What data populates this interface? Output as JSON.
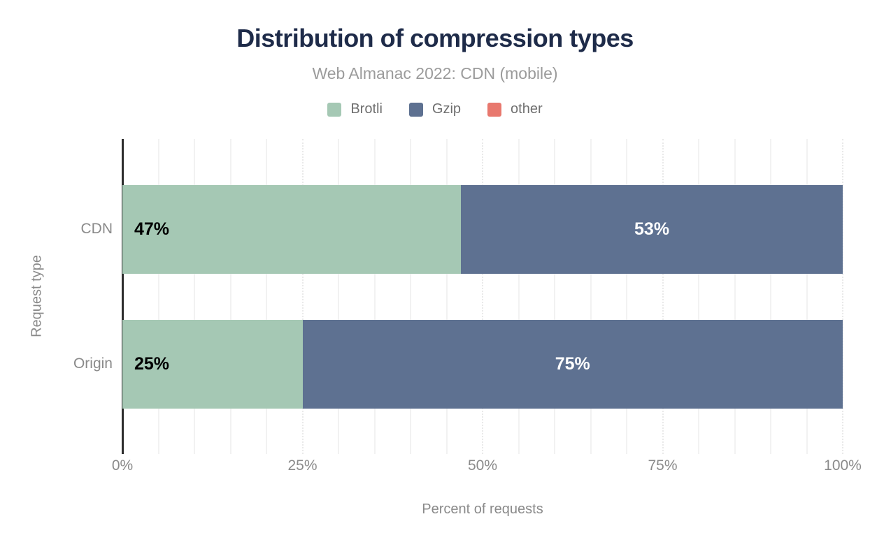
{
  "chart_data": {
    "type": "bar",
    "orientation": "horizontal",
    "stacked": true,
    "title": "Distribution of compression types",
    "subtitle": "Web Almanac 2022: CDN (mobile)",
    "xlabel": "Percent of requests",
    "ylabel": "Request type",
    "categories": [
      "CDN",
      "Origin"
    ],
    "series": [
      {
        "name": "Brotli",
        "color": "#a5c8b4",
        "values": [
          47,
          25
        ],
        "label_color": "#000000",
        "label_align": "start"
      },
      {
        "name": "Gzip",
        "color": "#5e7191",
        "values": [
          53,
          75
        ],
        "label_color": "#ffffff",
        "label_align": "center"
      },
      {
        "name": "other",
        "color": "#e8786e",
        "values": [
          0,
          0
        ],
        "label_color": "#000000",
        "label_align": "center"
      }
    ],
    "bar_labels": [
      [
        "47%",
        "53%"
      ],
      [
        "25%",
        "75%"
      ]
    ],
    "x_ticks": [
      {
        "label": "0%",
        "value": 0
      },
      {
        "label": "25%",
        "value": 25
      },
      {
        "label": "50%",
        "value": 50
      },
      {
        "label": "75%",
        "value": 75
      },
      {
        "label": "100%",
        "value": 100
      }
    ],
    "xlim": [
      0,
      100
    ],
    "grid": {
      "on": true,
      "minor_interval": 5,
      "major_interval": 25,
      "minor_style": "solid",
      "major_style": "dotted"
    },
    "legend_position": "top"
  },
  "colors": {
    "title": "#1e2b49",
    "subtitle": "#9b9b9b",
    "legend_text": "#6f6f6f",
    "axis_text": "#8a8a8a",
    "axis_line": "#2d2d2d",
    "grid_minor": "#f2f2f2",
    "grid_major": "#e9e9e9",
    "background": "#ffffff"
  }
}
